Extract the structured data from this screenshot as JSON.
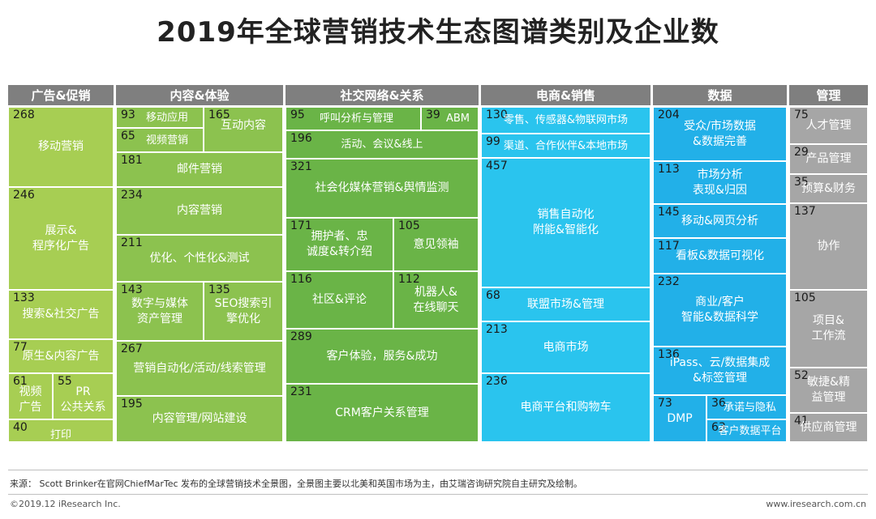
{
  "title": "2019年全球营销技术生态图谱类别及企业数",
  "footer": {
    "source": "来源： Scott Brinker在官网ChiefMarTec 发布的全球营销技术全景图，全景图主要以北美和英国市场为主，由艾瑞咨询研究院自主研究及绘制。",
    "copyright": "©2019.12 iResearch Inc.",
    "website": "www.iresearch.com.cn"
  },
  "colors": {
    "header": "#7f7f7f",
    "ads": "#a7ce53",
    "content": "#8cc24f",
    "social": "#6ab447",
    "commerce": "#2ac4ee",
    "data": "#22b0e8",
    "management": "#a6a6a6"
  },
  "chart_data": {
    "type": "treemap",
    "categories": [
      {
        "name": "广告&促销",
        "color_key": "ads",
        "items": [
          {
            "label": "移动营销",
            "value": 268
          },
          {
            "label": "展示&\n程序化广告",
            "value": 246
          },
          {
            "label": "搜索&社交广告",
            "value": 133
          },
          {
            "label": "原生&内容广告",
            "value": 77
          },
          {
            "label": "视频\n广告",
            "value": 61
          },
          {
            "label": "PR\n公共关系",
            "value": 55
          },
          {
            "label": "打印",
            "value": 40
          }
        ]
      },
      {
        "name": "内容&体验",
        "color_key": "content",
        "items": [
          {
            "label": "移动应用",
            "value": 93
          },
          {
            "label": "视频营销",
            "value": 65
          },
          {
            "label": "互动内容",
            "value": 165
          },
          {
            "label": "邮件营销",
            "value": 181
          },
          {
            "label": "内容营销",
            "value": 234
          },
          {
            "label": "优化、个性化&测试",
            "value": 211
          },
          {
            "label": "数字与媒体\n资产管理",
            "value": 143
          },
          {
            "label": "SEO搜索引\n擎优化",
            "value": 135
          },
          {
            "label": "营销自动化/活动/线索管理",
            "value": 267
          },
          {
            "label": "内容管理/网站建设",
            "value": 195
          }
        ]
      },
      {
        "name": "社交网络&关系",
        "color_key": "social",
        "items": [
          {
            "label": "呼叫分析与管理",
            "value": 95
          },
          {
            "label": "ABM",
            "value": 39
          },
          {
            "label": "活动、会议&线上",
            "value": 196
          },
          {
            "label": "社会化媒体营销&舆情监测",
            "value": 321
          },
          {
            "label": "拥护者、忠\n诚度&转介绍",
            "value": 171
          },
          {
            "label": "意见领袖",
            "value": 105
          },
          {
            "label": "社区&评论",
            "value": 116
          },
          {
            "label": "机器人&\n在线聊天",
            "value": 112
          },
          {
            "label": "客户体验，服务&成功",
            "value": 289
          },
          {
            "label": "CRM客户关系管理",
            "value": 231
          }
        ]
      },
      {
        "name": "电商&销售",
        "color_key": "commerce",
        "items": [
          {
            "label": "零售、传感器&物联网市场",
            "value": 130
          },
          {
            "label": "渠道、合作伙伴&本地市场",
            "value": 99
          },
          {
            "label": "销售自动化\n附能&智能化",
            "value": 457
          },
          {
            "label": "联盟市场&管理",
            "value": 68
          },
          {
            "label": "电商市场",
            "value": 213
          },
          {
            "label": "电商平台和购物车",
            "value": 236
          }
        ]
      },
      {
        "name": "数据",
        "color_key": "data",
        "items": [
          {
            "label": "受众/市场数据\n&数据完善",
            "value": 204
          },
          {
            "label": "市场分析\n表现&归因",
            "value": 113
          },
          {
            "label": "移动&网页分析",
            "value": 145
          },
          {
            "label": "看板&数据可视化",
            "value": 117
          },
          {
            "label": "商业/客户\n智能&数据科学",
            "value": 232
          },
          {
            "label": "iPass、云/数据集成\n&标签管理",
            "value": 136
          },
          {
            "label": "DMP",
            "value": 73
          },
          {
            "label": "承诺与隐私",
            "value": 36
          },
          {
            "label": "客户数据平台",
            "value": 63
          }
        ]
      },
      {
        "name": "管理",
        "color_key": "management",
        "items": [
          {
            "label": "人才管理",
            "value": 75
          },
          {
            "label": "产品管理",
            "value": 29
          },
          {
            "label": "预算&财务",
            "value": 35
          },
          {
            "label": "协作",
            "value": 137
          },
          {
            "label": "项目&\n工作流",
            "value": 105
          },
          {
            "label": "敏捷&精\n益管理",
            "value": 52
          },
          {
            "label": "供应商管理",
            "value": 41
          }
        ]
      }
    ]
  }
}
